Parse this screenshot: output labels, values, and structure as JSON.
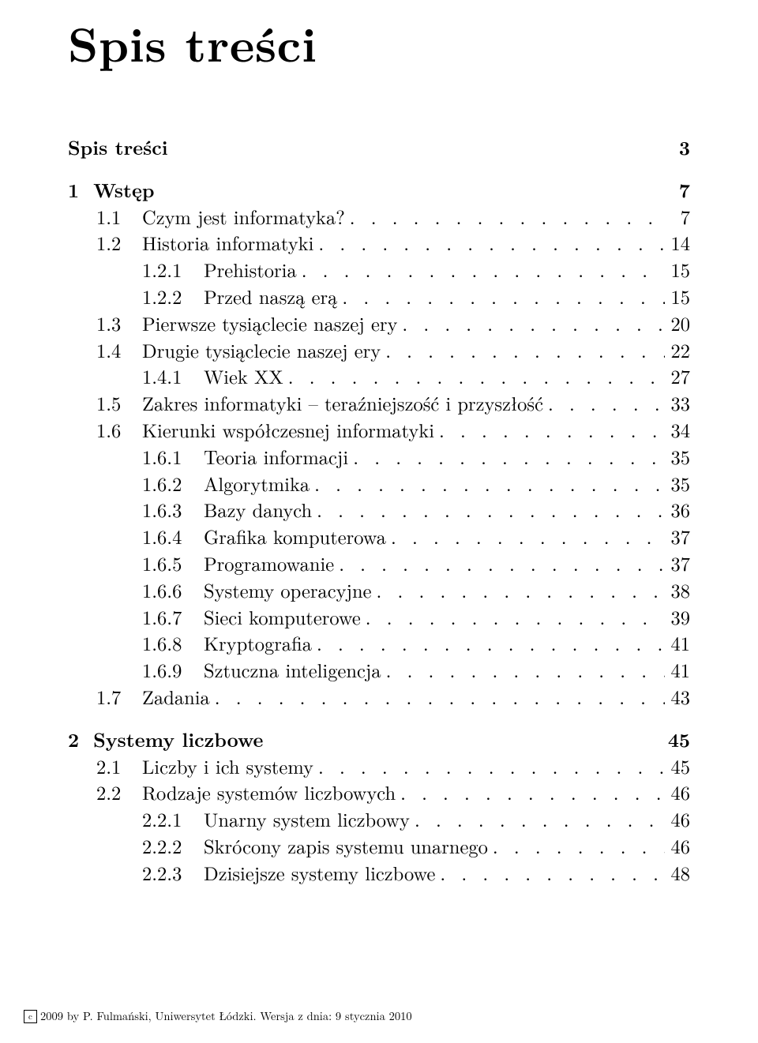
{
  "title": "Spis treści",
  "toc": [
    {
      "level": 0,
      "bold": true,
      "num": "",
      "label": "Spis treści",
      "page": "3",
      "dots": false,
      "chapter": true
    },
    {
      "level": 0,
      "bold": true,
      "num": "1",
      "label": "Wstęp",
      "page": "7",
      "dots": false,
      "chapter": true
    },
    {
      "level": 1,
      "bold": false,
      "num": "1.1",
      "label": "Czym jest informatyka?",
      "page": "7",
      "dots": true
    },
    {
      "level": 1,
      "bold": false,
      "num": "1.2",
      "label": "Historia informatyki",
      "page": "14",
      "dots": true
    },
    {
      "level": 2,
      "bold": false,
      "num": "1.2.1",
      "label": "Prehistoria",
      "page": "15",
      "dots": true
    },
    {
      "level": 2,
      "bold": false,
      "num": "1.2.2",
      "label": "Przed naszą erą",
      "page": "15",
      "dots": true
    },
    {
      "level": 1,
      "bold": false,
      "num": "1.3",
      "label": "Pierwsze tysiąclecie naszej ery",
      "page": "20",
      "dots": true
    },
    {
      "level": 1,
      "bold": false,
      "num": "1.4",
      "label": "Drugie tysiąclecie naszej ery",
      "page": "22",
      "dots": true
    },
    {
      "level": 2,
      "bold": false,
      "num": "1.4.1",
      "label": "Wiek XX",
      "page": "27",
      "dots": true
    },
    {
      "level": 1,
      "bold": false,
      "num": "1.5",
      "label": "Zakres informatyki – teraźniejszość i przyszłość",
      "page": "33",
      "dots": true
    },
    {
      "level": 1,
      "bold": false,
      "num": "1.6",
      "label": "Kierunki współczesnej informatyki",
      "page": "34",
      "dots": true
    },
    {
      "level": 2,
      "bold": false,
      "num": "1.6.1",
      "label": "Teoria informacji",
      "page": "35",
      "dots": true
    },
    {
      "level": 2,
      "bold": false,
      "num": "1.6.2",
      "label": "Algorytmika",
      "page": "35",
      "dots": true
    },
    {
      "level": 2,
      "bold": false,
      "num": "1.6.3",
      "label": "Bazy danych",
      "page": "36",
      "dots": true
    },
    {
      "level": 2,
      "bold": false,
      "num": "1.6.4",
      "label": "Grafika komputerowa",
      "page": "37",
      "dots": true
    },
    {
      "level": 2,
      "bold": false,
      "num": "1.6.5",
      "label": "Programowanie",
      "page": "37",
      "dots": true
    },
    {
      "level": 2,
      "bold": false,
      "num": "1.6.6",
      "label": "Systemy operacyjne",
      "page": "38",
      "dots": true
    },
    {
      "level": 2,
      "bold": false,
      "num": "1.6.7",
      "label": "Sieci komputerowe",
      "page": "39",
      "dots": true
    },
    {
      "level": 2,
      "bold": false,
      "num": "1.6.8",
      "label": "Kryptografia",
      "page": "41",
      "dots": true
    },
    {
      "level": 2,
      "bold": false,
      "num": "1.6.9",
      "label": "Sztuczna inteligencja",
      "page": "41",
      "dots": true
    },
    {
      "level": 1,
      "bold": false,
      "num": "1.7",
      "label": "Zadania",
      "page": "43",
      "dots": true
    },
    {
      "level": 0,
      "bold": true,
      "num": "2",
      "label": "Systemy liczbowe",
      "page": "45",
      "dots": false,
      "chapter": true
    },
    {
      "level": 1,
      "bold": false,
      "num": "2.1",
      "label": "Liczby i ich systemy",
      "page": "45",
      "dots": true
    },
    {
      "level": 1,
      "bold": false,
      "num": "2.2",
      "label": "Rodzaje systemów liczbowych",
      "page": "46",
      "dots": true
    },
    {
      "level": 2,
      "bold": false,
      "num": "2.2.1",
      "label": "Unarny system liczbowy",
      "page": "46",
      "dots": true
    },
    {
      "level": 2,
      "bold": false,
      "num": "2.2.2",
      "label": "Skrócony zapis systemu unarnego",
      "page": "46",
      "dots": true
    },
    {
      "level": 2,
      "bold": false,
      "num": "2.2.3",
      "label": "Dzisiejsze systemy liczbowe",
      "page": "48",
      "dots": true
    }
  ],
  "footer": {
    "copyright_symbol": "c",
    "text": "2009 by P. Fulmański, Uniwersytet Łódzki. Wersja z dnia: 9 stycznia 2010"
  }
}
